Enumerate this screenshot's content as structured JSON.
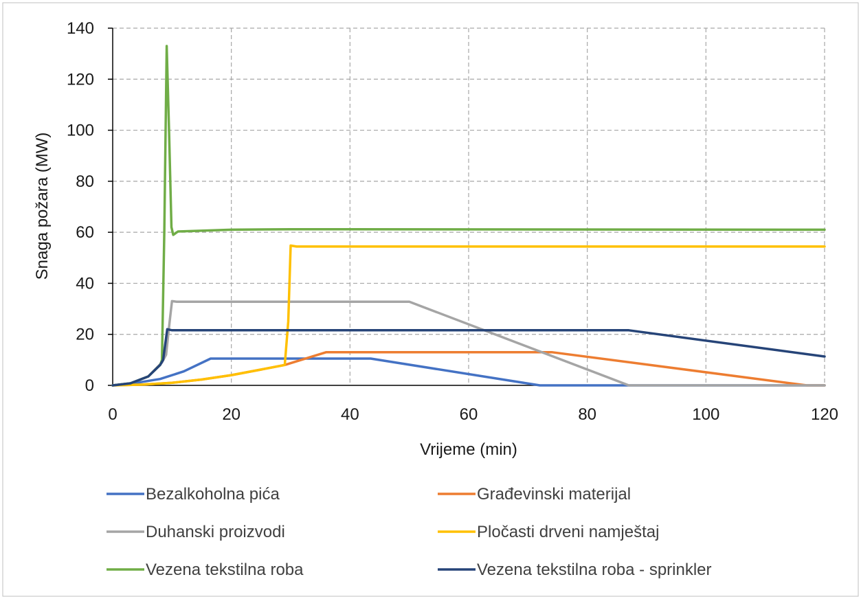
{
  "chart_data": {
    "type": "line",
    "title": "",
    "xlabel": "Vrijeme (min)",
    "ylabel": "Snaga požara (MW)",
    "xlim": [
      0,
      120
    ],
    "ylim": [
      0,
      140
    ],
    "x_ticks": [
      "0",
      "20",
      "40",
      "60",
      "80",
      "100",
      "120"
    ],
    "y_ticks": [
      "0",
      "20",
      "40",
      "60",
      "80",
      "100",
      "120",
      "140"
    ],
    "grid": true,
    "legend_position": "bottom",
    "series": [
      {
        "name": "Bezalkoholna pića",
        "color": "#4472c4",
        "points": [
          [
            0,
            0
          ],
          [
            4,
            1
          ],
          [
            8,
            2.5
          ],
          [
            12,
            5.5
          ],
          [
            16.5,
            10.5
          ],
          [
            43.5,
            10.5
          ],
          [
            72,
            0
          ],
          [
            120,
            0
          ]
        ]
      },
      {
        "name": "Građevinski materijal",
        "color": "#ed7d31",
        "points": [
          [
            0,
            0
          ],
          [
            5,
            0.3
          ],
          [
            10,
            1
          ],
          [
            15,
            2.3
          ],
          [
            20,
            4
          ],
          [
            25,
            6.2
          ],
          [
            29,
            8
          ],
          [
            36,
            13
          ],
          [
            74,
            13
          ],
          [
            117,
            0
          ],
          [
            120,
            0
          ]
        ]
      },
      {
        "name": "Duhanski proizvodi",
        "color": "#a5a5a5",
        "points": [
          [
            0,
            0
          ],
          [
            3,
            0.8
          ],
          [
            6,
            3.5
          ],
          [
            8.3,
            9
          ],
          [
            9,
            12
          ],
          [
            9.6,
            25
          ],
          [
            10,
            33
          ],
          [
            10.8,
            32.8
          ],
          [
            50,
            32.8
          ],
          [
            87,
            0
          ],
          [
            120,
            0
          ]
        ]
      },
      {
        "name": "Pločasti drveni namještaj",
        "color": "#ffc000",
        "points": [
          [
            0,
            0
          ],
          [
            5,
            0.3
          ],
          [
            10,
            1
          ],
          [
            15,
            2.3
          ],
          [
            20,
            4
          ],
          [
            25,
            6.2
          ],
          [
            29,
            8
          ],
          [
            29.6,
            25
          ],
          [
            30,
            54.8
          ],
          [
            31,
            54.4
          ],
          [
            120,
            54.4
          ]
        ]
      },
      {
        "name": "Vezena tekstilna roba",
        "color": "#70ad47",
        "points": [
          [
            0,
            0
          ],
          [
            3,
            0.8
          ],
          [
            6,
            3.5
          ],
          [
            8,
            8
          ],
          [
            8.3,
            10
          ],
          [
            8.7,
            60
          ],
          [
            9.1,
            133
          ],
          [
            9.5,
            100
          ],
          [
            9.9,
            62
          ],
          [
            10.2,
            59
          ],
          [
            11,
            60.3
          ],
          [
            20,
            61
          ],
          [
            30,
            61.2
          ],
          [
            120,
            61
          ]
        ]
      },
      {
        "name": "Vezena tekstilna roba - sprinkler",
        "color": "#264478",
        "points": [
          [
            0,
            0
          ],
          [
            3,
            0.8
          ],
          [
            6,
            3.5
          ],
          [
            8,
            8
          ],
          [
            8.5,
            10
          ],
          [
            9.2,
            22
          ],
          [
            10,
            21.6
          ],
          [
            87,
            21.6
          ],
          [
            120,
            11.3
          ]
        ]
      }
    ]
  }
}
